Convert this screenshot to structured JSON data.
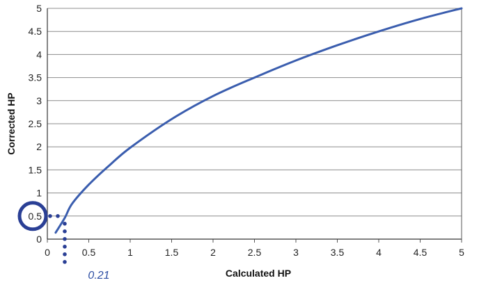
{
  "chart_data": {
    "type": "line",
    "xlabel": "Calculated HP",
    "ylabel": "Corrected HP",
    "xlim": [
      0,
      5
    ],
    "ylim": [
      0,
      5
    ],
    "x_ticks": [
      "0",
      "0.5",
      "1",
      "1.5",
      "2",
      "2.5",
      "3",
      "3.5",
      "4",
      "4.5",
      "5"
    ],
    "y_ticks": [
      "0",
      "0.5",
      "1",
      "1.5",
      "2",
      "2.5",
      "3",
      "3.5",
      "4",
      "4.5",
      "5"
    ],
    "grid": "horizontal",
    "series": [
      {
        "x": [
          0.1,
          0.21,
          0.3,
          0.5,
          0.75,
          1,
          1.5,
          2,
          2.5,
          3,
          3.5,
          4,
          4.5,
          5
        ],
        "y": [
          0.14,
          0.46,
          0.77,
          1.18,
          1.6,
          1.98,
          2.6,
          3.1,
          3.5,
          3.87,
          4.2,
          4.5,
          4.77,
          5.0
        ]
      }
    ],
    "annotation": {
      "label": "0.21",
      "x": 0.21,
      "y": 0.5
    },
    "colors": {
      "line": "#3a5dae",
      "marker": "#2a3f95",
      "grid": "#8c8c8c"
    }
  }
}
